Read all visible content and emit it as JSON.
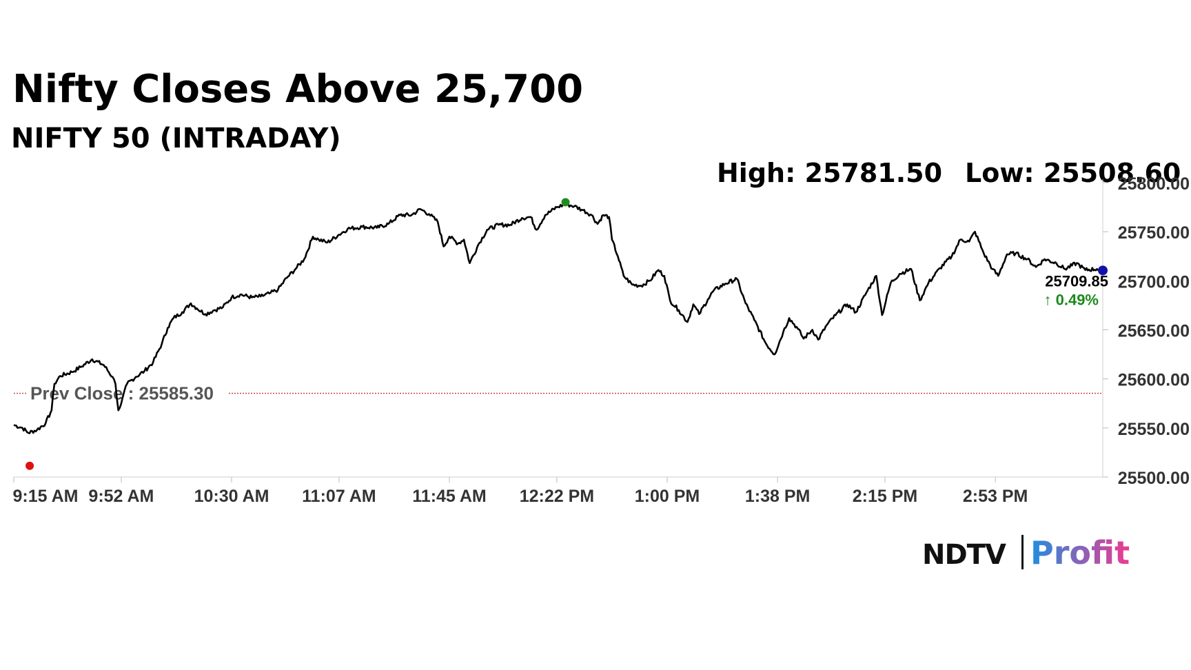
{
  "header": {
    "title": "Nifty Closes Above 25,700",
    "subtitle": "NIFTY 50 (INTRADAY)",
    "high_label": "High: 25781.50",
    "low_label": "Low: 25508.60"
  },
  "annotations": {
    "prev_close_label": "Prev Close : 25585.30",
    "last_value_label": "25709.85",
    "change_label": "↑ 0.49%"
  },
  "brand": {
    "part1": "NDTV",
    "part2": "Profit"
  },
  "colors": {
    "line": "#000000",
    "prev_close_line": "#c0392b",
    "change_up": "#1a8a1a",
    "low_marker": "#e01010",
    "high_marker": "#1e8c1e",
    "last_marker": "#1010aa",
    "brand_gradient_start": "#1d8fe0",
    "brand_gradient_end": "#f0398f"
  },
  "chart_data": {
    "type": "line",
    "title": "NIFTY 50 (INTRADAY)",
    "xlabel": "",
    "ylabel": "",
    "x_tick_labels": [
      "9:15 AM",
      "9:52 AM",
      "10:30 AM",
      "11:07 AM",
      "11:45 AM",
      "12:22 PM",
      "1:00 PM",
      "1:38 PM",
      "2:15 PM",
      "2:53 PM"
    ],
    "y_tick_labels": [
      "25500.00",
      "25550.00",
      "25600.00",
      "25650.00",
      "25700.00",
      "25750.00",
      "25800.00"
    ],
    "ylim": [
      25500,
      25800
    ],
    "time_range": [
      "9:15 AM",
      "3:30 PM"
    ],
    "grid": false,
    "prev_close": 25585.3,
    "high": 25781.5,
    "low": 25508.6,
    "last": 25709.85,
    "change_pct": 0.49,
    "series": [
      {
        "values": [
          [
            "9:15 AM",
            25553
          ],
          [
            "9:18 AM",
            25550
          ],
          [
            "9:20 AM",
            25545
          ],
          [
            "9:23 AM",
            25548
          ],
          [
            "9:26 AM",
            25555
          ],
          [
            "9:28 AM",
            25568
          ],
          [
            "9:29 AM",
            25595
          ],
          [
            "9:31 AM",
            25603
          ],
          [
            "9:35 AM",
            25607
          ],
          [
            "9:38 AM",
            25612
          ],
          [
            "9:42 AM",
            25620
          ],
          [
            "9:46 AM",
            25614
          ],
          [
            "9:49 AM",
            25602
          ],
          [
            "9:50 AM",
            25595
          ],
          [
            "9:51 AM",
            25568
          ],
          [
            "9:52 AM",
            25575
          ],
          [
            "9:54 AM",
            25595
          ],
          [
            "9:57 AM",
            25602
          ],
          [
            "10:00 AM",
            25608
          ],
          [
            "10:03 AM",
            25617
          ],
          [
            "10:06 AM",
            25636
          ],
          [
            "10:08 AM",
            25652
          ],
          [
            "10:10 AM",
            25662
          ],
          [
            "10:13 AM",
            25668
          ],
          [
            "10:16 AM",
            25677
          ],
          [
            "10:18 AM",
            25672
          ],
          [
            "10:21 AM",
            25666
          ],
          [
            "10:24 AM",
            25670
          ],
          [
            "10:27 AM",
            25673
          ],
          [
            "10:30 AM",
            25683
          ],
          [
            "10:33 AM",
            25686
          ],
          [
            "10:37 AM",
            25683
          ],
          [
            "10:40 AM",
            25684
          ],
          [
            "10:43 AM",
            25687
          ],
          [
            "10:46 AM",
            25691
          ],
          [
            "10:49 AM",
            25703
          ],
          [
            "10:52 AM",
            25712
          ],
          [
            "10:55 AM",
            25722
          ],
          [
            "10:58 AM",
            25745
          ],
          [
            "11:00 AM",
            25742
          ],
          [
            "11:03 AM",
            25739
          ],
          [
            "11:07 AM",
            25747
          ],
          [
            "11:10 AM",
            25753
          ],
          [
            "11:15 AM",
            25755
          ],
          [
            "11:20 AM",
            25754
          ],
          [
            "11:24 AM",
            25758
          ],
          [
            "11:28 AM",
            25767
          ],
          [
            "11:32 AM",
            25767
          ],
          [
            "11:35 AM",
            25773
          ],
          [
            "11:38 AM",
            25768
          ],
          [
            "11:41 AM",
            25760
          ],
          [
            "11:43 AM",
            25735
          ],
          [
            "11:45 AM",
            25745
          ],
          [
            "11:48 AM",
            25738
          ],
          [
            "11:50 AM",
            25742
          ],
          [
            "11:52 AM",
            25718
          ],
          [
            "11:55 AM",
            25737
          ],
          [
            "11:58 AM",
            25752
          ],
          [
            "12:02 PM",
            25757
          ],
          [
            "12:06 PM",
            25757
          ],
          [
            "12:10 PM",
            25764
          ],
          [
            "12:13 PM",
            25765
          ],
          [
            "12:15 PM",
            25752
          ],
          [
            "12:18 PM",
            25767
          ],
          [
            "12:22 PM",
            25775
          ],
          [
            "12:25 PM",
            25778
          ],
          [
            "12:28 PM",
            25776
          ],
          [
            "12:31 PM",
            25772
          ],
          [
            "12:34 PM",
            25767
          ],
          [
            "12:36 PM",
            25758
          ],
          [
            "12:38 PM",
            25767
          ],
          [
            "12:40 PM",
            25765
          ],
          [
            "12:41 PM",
            25742
          ],
          [
            "12:43 PM",
            25725
          ],
          [
            "12:45 PM",
            25705
          ],
          [
            "12:48 PM",
            25696
          ],
          [
            "12:51 PM",
            25695
          ],
          [
            "12:54 PM",
            25700
          ],
          [
            "12:57 PM",
            25711
          ],
          [
            "12:59 PM",
            25705
          ],
          [
            "1:01 PM",
            25680
          ],
          [
            "1:04 PM",
            25670
          ],
          [
            "1:07 PM",
            25658
          ],
          [
            "1:09 PM",
            25676
          ],
          [
            "1:11 PM",
            25666
          ],
          [
            "1:14 PM",
            25681
          ],
          [
            "1:16 PM",
            25690
          ],
          [
            "1:20 PM",
            25697
          ],
          [
            "1:24 PM",
            25702
          ],
          [
            "1:27 PM",
            25677
          ],
          [
            "1:30 PM",
            25660
          ],
          [
            "1:34 PM",
            25636
          ],
          [
            "1:37 PM",
            25625
          ],
          [
            "1:40 PM",
            25648
          ],
          [
            "1:42 PM",
            25662
          ],
          [
            "1:45 PM",
            25651
          ],
          [
            "1:47 PM",
            25641
          ],
          [
            "1:50 PM",
            25650
          ],
          [
            "1:52 PM",
            25640
          ],
          [
            "1:55 PM",
            25655
          ],
          [
            "1:58 PM",
            25665
          ],
          [
            "2:02 PM",
            25676
          ],
          [
            "2:05 PM",
            25668
          ],
          [
            "2:09 PM",
            25690
          ],
          [
            "2:12 PM",
            25705
          ],
          [
            "2:14 PM",
            25665
          ],
          [
            "2:17 PM",
            25698
          ],
          [
            "2:20 PM",
            25707
          ],
          [
            "2:24 PM",
            25712
          ],
          [
            "2:27 PM",
            25680
          ],
          [
            "2:30 PM",
            25698
          ],
          [
            "2:34 PM",
            25713
          ],
          [
            "2:38 PM",
            25725
          ],
          [
            "2:41 PM",
            25742
          ],
          [
            "2:44 PM",
            25740
          ],
          [
            "2:46 PM",
            25750
          ],
          [
            "2:49 PM",
            25728
          ],
          [
            "2:52 PM",
            25712
          ],
          [
            "2:54 PM",
            25705
          ],
          [
            "2:57 PM",
            25727
          ],
          [
            "3:00 PM",
            25728
          ],
          [
            "3:04 PM",
            25722
          ],
          [
            "3:07 PM",
            25714
          ],
          [
            "3:10 PM",
            25722
          ],
          [
            "3:14 PM",
            25718
          ],
          [
            "3:17 PM",
            25712
          ],
          [
            "3:21 PM",
            25718
          ],
          [
            "3:24 PM",
            25711
          ],
          [
            "3:28 PM",
            25712
          ],
          [
            "3:30 PM",
            25709.85
          ]
        ]
      }
    ]
  }
}
